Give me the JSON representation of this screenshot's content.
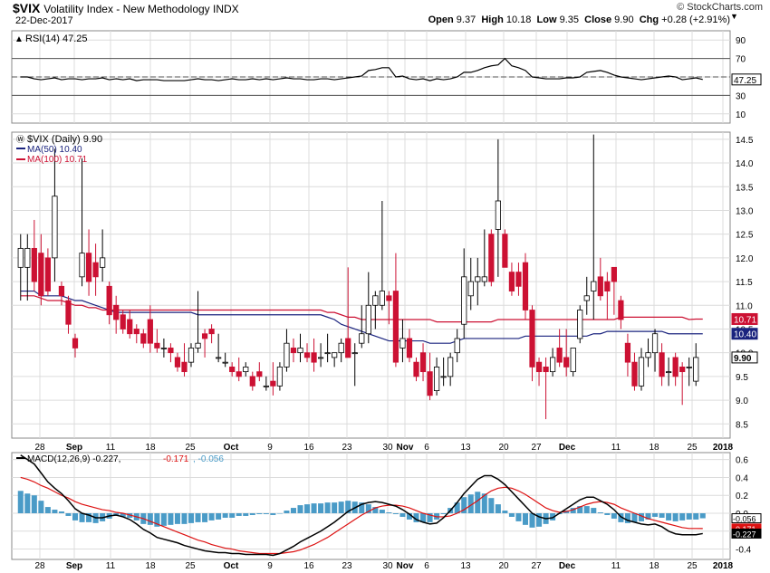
{
  "header": {
    "symbol": "$VIX",
    "name": "Volatility Index - New Methodology  INDX",
    "date": "22-Dec-2017",
    "credit": "© StockCharts.com",
    "quote": {
      "open_label": "Open",
      "open": "9.37",
      "high_label": "High",
      "high": "10.18",
      "low_label": "Low",
      "low": "9.35",
      "close_label": "Close",
      "close": "9.90",
      "chg_label": "Chg",
      "chg": "+0.28 (+2.91%)"
    }
  },
  "rsi_panel": {
    "legend": "RSI(14) 47.25",
    "current": "47.25",
    "ticks": [
      "90",
      "70",
      "50",
      "30",
      "10"
    ],
    "levels": [
      70,
      30
    ]
  },
  "price_panel": {
    "legend_main": "$VIX (Daily) 9.90",
    "legend_ma50": "MA(50) 10.40",
    "legend_ma100": "MA(100) 10.71",
    "ticks": [
      "14.5",
      "14.0",
      "13.5",
      "13.0",
      "12.5",
      "12.0",
      "11.5",
      "11.0",
      "10.5",
      "10.0",
      "9.5",
      "9.0",
      "8.5"
    ],
    "tag_ma100": "10.71",
    "tag_ma50": "10.40",
    "tag_close": "9.90"
  },
  "macd_panel": {
    "legend_prefix": "MACD(12,26,9)",
    "macd_val": "-0.227",
    "signal_val": "-0.171",
    "hist_val": "-0.056",
    "ticks": [
      "0.6",
      "0.4",
      "0.2",
      "0.0",
      "-0.2",
      "-0.4"
    ],
    "tag_hist": "-0.056",
    "tag_signal": "-0.171",
    "tag_macd": "-0.227"
  },
  "x_axis": {
    "labels": [
      "28",
      "Sep",
      "11",
      "18",
      "25",
      "Oct",
      "9",
      "16",
      "23",
      "30",
      "Nov",
      "6",
      "13",
      "20",
      "27",
      "Dec",
      "11",
      "18",
      "25",
      "2018"
    ]
  },
  "colors": {
    "up": "#ffffff",
    "down": "#cc1133",
    "down_black": "#000000",
    "ma50": "#1a237e",
    "ma100": "#cc1133",
    "macd": "#000000",
    "signal": "#dd1111",
    "hist": "#4a9bc7",
    "grid": "#dcdcdc"
  },
  "chart_data": {
    "type": "candlestick",
    "title": "$VIX Volatility Index - New Methodology INDX",
    "candles": [
      {
        "o": 11.8,
        "h": 12.5,
        "l": 11.1,
        "c": 12.2
      },
      {
        "o": 11.8,
        "h": 12.5,
        "l": 11.1,
        "c": 12.2
      },
      {
        "o": 12.2,
        "h": 12.8,
        "l": 11.3,
        "c": 11.5
      },
      {
        "o": 12.1,
        "h": 12.5,
        "l": 11.0,
        "c": 11.2
      },
      {
        "o": 12.0,
        "h": 12.2,
        "l": 11.2,
        "c": 11.3
      },
      {
        "o": 12.0,
        "h": 14.3,
        "l": 11.5,
        "c": 13.3
      },
      {
        "o": 11.4,
        "h": 11.5,
        "l": 11.0,
        "c": 11.2
      },
      {
        "o": 11.1,
        "h": 11.2,
        "l": 10.4,
        "c": 10.6
      },
      {
        "o": 10.3,
        "h": 10.4,
        "l": 9.9,
        "c": 10.1
      },
      {
        "o": 11.6,
        "h": 14.1,
        "l": 11.4,
        "c": 12.1
      },
      {
        "o": 12.1,
        "h": 12.6,
        "l": 11.2,
        "c": 11.5
      },
      {
        "o": 11.9,
        "h": 12.3,
        "l": 11.2,
        "c": 11.6
      },
      {
        "o": 11.8,
        "h": 12.6,
        "l": 11.5,
        "c": 12.0
      },
      {
        "o": 11.4,
        "h": 11.5,
        "l": 10.6,
        "c": 10.8
      },
      {
        "o": 11.0,
        "h": 11.2,
        "l": 10.4,
        "c": 10.7
      },
      {
        "o": 10.8,
        "h": 10.9,
        "l": 10.4,
        "c": 10.5
      },
      {
        "o": 10.7,
        "h": 10.9,
        "l": 10.3,
        "c": 10.4
      },
      {
        "o": 10.5,
        "h": 10.6,
        "l": 10.2,
        "c": 10.4
      },
      {
        "o": 10.4,
        "h": 10.5,
        "l": 10.1,
        "c": 10.2
      },
      {
        "o": 10.7,
        "h": 11.0,
        "l": 10.0,
        "c": 10.2
      },
      {
        "o": 10.2,
        "h": 10.5,
        "l": 10.0,
        "c": 10.1
      },
      {
        "o": 10.1,
        "h": 10.3,
        "l": 9.9,
        "c": 10.1
      },
      {
        "o": 10.1,
        "h": 10.2,
        "l": 9.8,
        "c": 10.0
      },
      {
        "o": 9.9,
        "h": 10.0,
        "l": 9.6,
        "c": 9.7
      },
      {
        "o": 9.8,
        "h": 10.2,
        "l": 9.5,
        "c": 9.6
      },
      {
        "o": 9.8,
        "h": 10.2,
        "l": 9.7,
        "c": 10.1
      },
      {
        "o": 10.1,
        "h": 11.3,
        "l": 10.0,
        "c": 10.2
      },
      {
        "o": 10.4,
        "h": 10.5,
        "l": 9.9,
        "c": 10.3
      },
      {
        "o": 10.5,
        "h": 10.6,
        "l": 10.2,
        "c": 10.4
      },
      {
        "o": 9.9,
        "h": 10.4,
        "l": 9.8,
        "c": 9.9
      },
      {
        "o": 9.8,
        "h": 10.0,
        "l": 9.7,
        "c": 9.8
      },
      {
        "o": 9.7,
        "h": 9.8,
        "l": 9.5,
        "c": 9.6
      },
      {
        "o": 9.6,
        "h": 9.9,
        "l": 9.4,
        "c": 9.5
      },
      {
        "o": 9.6,
        "h": 9.8,
        "l": 9.5,
        "c": 9.7
      },
      {
        "o": 9.5,
        "h": 9.6,
        "l": 9.2,
        "c": 9.3
      },
      {
        "o": 9.6,
        "h": 9.8,
        "l": 9.4,
        "c": 9.5
      },
      {
        "o": 9.3,
        "h": 9.5,
        "l": 9.2,
        "c": 9.3
      },
      {
        "o": 9.4,
        "h": 9.8,
        "l": 9.1,
        "c": 9.3
      },
      {
        "o": 9.3,
        "h": 9.8,
        "l": 9.2,
        "c": 9.7
      },
      {
        "o": 9.7,
        "h": 10.5,
        "l": 9.6,
        "c": 10.2
      },
      {
        "o": 10.1,
        "h": 10.3,
        "l": 9.8,
        "c": 10.0
      },
      {
        "o": 10.0,
        "h": 10.4,
        "l": 9.8,
        "c": 10.1
      },
      {
        "o": 10.0,
        "h": 10.2,
        "l": 9.8,
        "c": 9.9
      },
      {
        "o": 10.0,
        "h": 10.3,
        "l": 9.6,
        "c": 9.8
      },
      {
        "o": 9.9,
        "h": 10.2,
        "l": 9.7,
        "c": 9.9
      },
      {
        "o": 10.0,
        "h": 10.4,
        "l": 9.8,
        "c": 10.0
      },
      {
        "o": 9.9,
        "h": 10.0,
        "l": 9.7,
        "c": 10.0
      },
      {
        "o": 10.0,
        "h": 10.3,
        "l": 9.8,
        "c": 10.2
      },
      {
        "o": 10.3,
        "h": 11.8,
        "l": 9.9,
        "c": 9.9
      },
      {
        "o": 10.0,
        "h": 10.2,
        "l": 9.3,
        "c": 10.0
      },
      {
        "o": 10.2,
        "h": 11.0,
        "l": 10.1,
        "c": 10.4
      },
      {
        "o": 10.4,
        "h": 11.7,
        "l": 10.2,
        "c": 11.0
      },
      {
        "o": 11.0,
        "h": 11.3,
        "l": 10.5,
        "c": 11.2
      },
      {
        "o": 11.0,
        "h": 13.2,
        "l": 10.9,
        "c": 11.3
      },
      {
        "o": 11.2,
        "h": 11.3,
        "l": 10.6,
        "c": 11.1
      },
      {
        "o": 11.3,
        "h": 12.1,
        "l": 9.7,
        "c": 9.8
      },
      {
        "o": 10.1,
        "h": 10.7,
        "l": 9.8,
        "c": 10.3
      },
      {
        "o": 10.3,
        "h": 10.5,
        "l": 9.8,
        "c": 9.9
      },
      {
        "o": 9.8,
        "h": 9.9,
        "l": 9.4,
        "c": 9.5
      },
      {
        "o": 10.0,
        "h": 10.2,
        "l": 9.4,
        "c": 9.6
      },
      {
        "o": 9.6,
        "h": 10.0,
        "l": 9.0,
        "c": 9.1
      },
      {
        "o": 9.2,
        "h": 9.9,
        "l": 9.1,
        "c": 9.7
      },
      {
        "o": 9.5,
        "h": 9.9,
        "l": 9.3,
        "c": 9.5
      },
      {
        "o": 9.5,
        "h": 10.0,
        "l": 9.3,
        "c": 9.9
      },
      {
        "o": 10.0,
        "h": 10.5,
        "l": 9.8,
        "c": 10.3
      },
      {
        "o": 10.6,
        "h": 12.2,
        "l": 10.3,
        "c": 11.6
      },
      {
        "o": 11.2,
        "h": 12.0,
        "l": 10.9,
        "c": 11.5
      },
      {
        "o": 11.5,
        "h": 12.0,
        "l": 11.0,
        "c": 11.6
      },
      {
        "o": 11.5,
        "h": 12.6,
        "l": 11.4,
        "c": 11.6
      },
      {
        "o": 12.5,
        "h": 12.6,
        "l": 11.4,
        "c": 11.5
      },
      {
        "o": 12.6,
        "h": 14.5,
        "l": 11.6,
        "c": 13.2
      },
      {
        "o": 12.5,
        "h": 12.6,
        "l": 11.8,
        "c": 11.8
      },
      {
        "o": 11.7,
        "h": 11.9,
        "l": 11.2,
        "c": 11.3
      },
      {
        "o": 11.7,
        "h": 11.9,
        "l": 11.2,
        "c": 11.4
      },
      {
        "o": 11.9,
        "h": 12.1,
        "l": 10.7,
        "c": 10.9
      },
      {
        "o": 10.9,
        "h": 11.0,
        "l": 9.4,
        "c": 9.7
      },
      {
        "o": 9.8,
        "h": 9.9,
        "l": 9.3,
        "c": 9.6
      },
      {
        "o": 9.7,
        "h": 9.9,
        "l": 8.6,
        "c": 9.6
      },
      {
        "o": 9.6,
        "h": 10.1,
        "l": 9.5,
        "c": 9.9
      },
      {
        "o": 10.1,
        "h": 10.5,
        "l": 9.7,
        "c": 9.8
      },
      {
        "o": 9.9,
        "h": 10.5,
        "l": 9.5,
        "c": 9.7
      },
      {
        "o": 9.6,
        "h": 10.1,
        "l": 9.5,
        "c": 10.1
      },
      {
        "o": 10.3,
        "h": 11.0,
        "l": 10.2,
        "c": 10.9
      },
      {
        "o": 11.1,
        "h": 11.6,
        "l": 10.8,
        "c": 11.2
      },
      {
        "o": 11.3,
        "h": 14.6,
        "l": 10.7,
        "c": 11.5
      },
      {
        "o": 11.6,
        "h": 12.0,
        "l": 11.1,
        "c": 11.2
      },
      {
        "o": 11.5,
        "h": 11.7,
        "l": 10.7,
        "c": 11.3
      },
      {
        "o": 11.8,
        "h": 11.8,
        "l": 10.8,
        "c": 11.5
      },
      {
        "o": 11.1,
        "h": 11.2,
        "l": 10.5,
        "c": 10.7
      },
      {
        "o": 10.2,
        "h": 10.4,
        "l": 9.5,
        "c": 9.8
      },
      {
        "o": 9.8,
        "h": 10.0,
        "l": 9.2,
        "c": 9.3
      },
      {
        "o": 9.3,
        "h": 10.1,
        "l": 9.2,
        "c": 9.9
      },
      {
        "o": 9.9,
        "h": 10.3,
        "l": 9.7,
        "c": 10.0
      },
      {
        "o": 10.0,
        "h": 10.5,
        "l": 9.6,
        "c": 10.4
      },
      {
        "o": 10.0,
        "h": 10.2,
        "l": 9.3,
        "c": 9.5
      },
      {
        "o": 9.6,
        "h": 9.9,
        "l": 9.3,
        "c": 9.6
      },
      {
        "o": 9.9,
        "h": 10.0,
        "l": 9.3,
        "c": 9.5
      },
      {
        "o": 9.7,
        "h": 9.8,
        "l": 8.9,
        "c": 9.6
      },
      {
        "o": 9.7,
        "h": 9.9,
        "l": 9.3,
        "c": 9.7
      },
      {
        "o": 9.4,
        "h": 10.2,
        "l": 9.3,
        "c": 9.9
      }
    ],
    "ma50": [
      11.3,
      11.3,
      11.3,
      11.2,
      11.2,
      11.2,
      11.2,
      11.15,
      11.1,
      11.1,
      11.05,
      11.0,
      10.95,
      10.9,
      10.85,
      10.85,
      10.85,
      10.85,
      10.85,
      10.85,
      10.85,
      10.85,
      10.85,
      10.85,
      10.85,
      10.85,
      10.8,
      10.8,
      10.8,
      10.8,
      10.8,
      10.8,
      10.8,
      10.8,
      10.8,
      10.8,
      10.8,
      10.8,
      10.8,
      10.8,
      10.8,
      10.8,
      10.8,
      10.8,
      10.8,
      10.75,
      10.7,
      10.6,
      10.55,
      10.5,
      10.45,
      10.4,
      10.35,
      10.3,
      10.25,
      10.25,
      10.25,
      10.25,
      10.25,
      10.25,
      10.2,
      10.2,
      10.2,
      10.2,
      10.25,
      10.3,
      10.3,
      10.3,
      10.3,
      10.3,
      10.3,
      10.3,
      10.3,
      10.3,
      10.35,
      10.35,
      10.35,
      10.35,
      10.35,
      10.35,
      10.35,
      10.35,
      10.35,
      10.35,
      10.4,
      10.4,
      10.45,
      10.45,
      10.45,
      10.45,
      10.45,
      10.45,
      10.45,
      10.45,
      10.45,
      10.4,
      10.4,
      10.4,
      10.4,
      10.4,
      10.4
    ],
    "ma100": [
      11.2,
      11.2,
      11.2,
      11.15,
      11.1,
      11.1,
      11.1,
      11.05,
      11.0,
      11.0,
      10.95,
      10.95,
      10.9,
      10.9,
      10.9,
      10.9,
      10.9,
      10.9,
      10.9,
      10.9,
      10.9,
      10.9,
      10.9,
      10.9,
      10.9,
      10.9,
      10.9,
      10.9,
      10.9,
      10.9,
      10.9,
      10.9,
      10.9,
      10.9,
      10.9,
      10.9,
      10.9,
      10.9,
      10.9,
      10.9,
      10.9,
      10.9,
      10.9,
      10.9,
      10.9,
      10.85,
      10.85,
      10.8,
      10.75,
      10.75,
      10.7,
      10.7,
      10.7,
      10.7,
      10.7,
      10.7,
      10.7,
      10.7,
      10.7,
      10.7,
      10.7,
      10.65,
      10.65,
      10.65,
      10.65,
      10.65,
      10.65,
      10.65,
      10.65,
      10.65,
      10.7,
      10.7,
      10.7,
      10.7,
      10.7,
      10.7,
      10.7,
      10.7,
      10.7,
      10.7,
      10.7,
      10.7,
      10.7,
      10.7,
      10.7,
      10.7,
      10.7,
      10.7,
      10.75,
      10.75,
      10.75,
      10.75,
      10.75,
      10.75,
      10.75,
      10.75,
      10.75,
      10.75,
      10.7,
      10.71,
      10.71
    ],
    "rsi": [
      50,
      50,
      48,
      47,
      48,
      49,
      47,
      48,
      48,
      47,
      48,
      48,
      49,
      47,
      48,
      47,
      48,
      46,
      47,
      47,
      47,
      46,
      46,
      46,
      46,
      47,
      48,
      47,
      47,
      46,
      47,
      48,
      47,
      47,
      48,
      47,
      48,
      47,
      48,
      49,
      48,
      48,
      47,
      47,
      48,
      48,
      47,
      48,
      49,
      50,
      51,
      57,
      58,
      60,
      60,
      50,
      51,
      48,
      47,
      48,
      46,
      48,
      47,
      48,
      50,
      55,
      55,
      57,
      60,
      62,
      63,
      70,
      62,
      60,
      57,
      50,
      49,
      48,
      48,
      48,
      49,
      49,
      50,
      55,
      56,
      57,
      55,
      52,
      50,
      49,
      48,
      47,
      48,
      49,
      50,
      51,
      50,
      47,
      48,
      49,
      47.25
    ],
    "macd": [
      0.65,
      0.6,
      0.55,
      0.45,
      0.35,
      0.28,
      0.22,
      0.14,
      0.05,
      0.0,
      -0.02,
      -0.05,
      -0.05,
      -0.03,
      -0.02,
      -0.04,
      -0.07,
      -0.12,
      -0.18,
      -0.22,
      -0.27,
      -0.29,
      -0.31,
      -0.33,
      -0.36,
      -0.38,
      -0.4,
      -0.42,
      -0.43,
      -0.44,
      -0.44,
      -0.45,
      -0.45,
      -0.46,
      -0.46,
      -0.46,
      -0.46,
      -0.47,
      -0.45,
      -0.41,
      -0.37,
      -0.32,
      -0.28,
      -0.24,
      -0.2,
      -0.15,
      -0.1,
      -0.04,
      0.02,
      0.06,
      0.1,
      0.12,
      0.13,
      0.12,
      0.1,
      0.08,
      0.04,
      -0.01,
      -0.07,
      -0.1,
      -0.12,
      -0.11,
      -0.05,
      0.03,
      0.12,
      0.22,
      0.3,
      0.38,
      0.42,
      0.42,
      0.38,
      0.32,
      0.24,
      0.16,
      0.08,
      0.0,
      -0.04,
      -0.06,
      -0.05,
      0.0,
      0.05,
      0.1,
      0.15,
      0.18,
      0.18,
      0.14,
      0.1,
      0.04,
      -0.04,
      -0.08,
      -0.1,
      -0.12,
      -0.13,
      -0.12,
      -0.15,
      -0.2,
      -0.23,
      -0.24,
      -0.24,
      -0.24,
      -0.227
    ],
    "signal": [
      0.4,
      0.38,
      0.35,
      0.31,
      0.28,
      0.24,
      0.2,
      0.17,
      0.13,
      0.1,
      0.08,
      0.06,
      0.04,
      0.03,
      0.01,
      0.0,
      -0.02,
      -0.04,
      -0.06,
      -0.09,
      -0.12,
      -0.15,
      -0.18,
      -0.21,
      -0.24,
      -0.27,
      -0.3,
      -0.32,
      -0.35,
      -0.37,
      -0.39,
      -0.4,
      -0.42,
      -0.43,
      -0.44,
      -0.45,
      -0.45,
      -0.45,
      -0.45,
      -0.44,
      -0.43,
      -0.41,
      -0.38,
      -0.35,
      -0.31,
      -0.27,
      -0.22,
      -0.17,
      -0.12,
      -0.07,
      -0.02,
      0.02,
      0.06,
      0.08,
      0.09,
      0.09,
      0.08,
      0.06,
      0.03,
      0.0,
      -0.02,
      -0.04,
      -0.04,
      -0.03,
      0.0,
      0.04,
      0.09,
      0.14,
      0.2,
      0.25,
      0.28,
      0.29,
      0.28,
      0.25,
      0.21,
      0.16,
      0.11,
      0.06,
      0.03,
      0.01,
      0.02,
      0.04,
      0.07,
      0.1,
      0.12,
      0.13,
      0.12,
      0.1,
      0.06,
      0.03,
      0.0,
      -0.03,
      -0.06,
      -0.08,
      -0.1,
      -0.12,
      -0.14,
      -0.16,
      -0.17,
      -0.17,
      -0.171
    ]
  }
}
